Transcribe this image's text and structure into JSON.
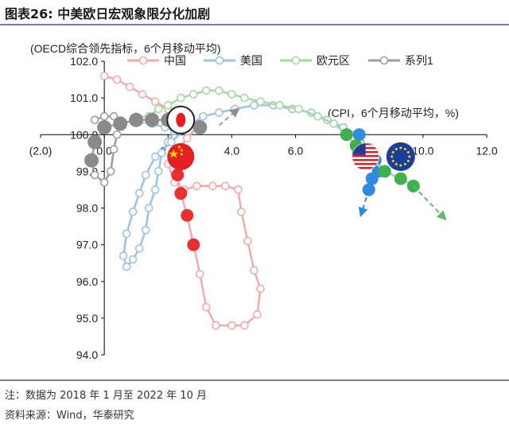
{
  "figure": {
    "title": "图表26:  中美欧日宏观象限分化加剧",
    "note": "注：数据为 2018 年 1 月至 2022 年 10 月",
    "source": "资料来源：Wind，华泰研究"
  },
  "chart_data": {
    "type": "scatter",
    "ylabel": "(OECD综合领先指标，6个月移动平均)",
    "xlabel": "(CPI，6个月移动平均，%)",
    "xlim": [
      -2.0,
      12.0
    ],
    "ylim": [
      94.0,
      102.0
    ],
    "x_ticks": [
      "(2.0)",
      "0.0",
      "2.0",
      "4.0",
      "6.0",
      "8.0",
      "10.0",
      "12.0"
    ],
    "y_ticks": [
      "94.0",
      "95.0",
      "96.0",
      "97.0",
      "98.0",
      "99.0",
      "100.0",
      "101.0",
      "102.0"
    ],
    "x_tick_values": [
      -2,
      0,
      2,
      4,
      6,
      8,
      10,
      12
    ],
    "y_tick_values": [
      94,
      95,
      96,
      97,
      98,
      99,
      100,
      101,
      102
    ],
    "x_axis_crosses_y": 100.0,
    "legend_position": "top",
    "series": [
      {
        "name": "中国",
        "color": "#f4aaaa",
        "icon": "china-flag-icon",
        "points": [
          [
            0.0,
            101.6
          ],
          [
            0.4,
            101.5
          ],
          [
            0.8,
            101.3
          ],
          [
            1.2,
            101.1
          ],
          [
            1.6,
            100.9
          ],
          [
            2.0,
            100.7
          ],
          [
            2.3,
            100.5
          ],
          [
            2.6,
            100.3
          ],
          [
            2.9,
            100.2
          ],
          [
            2.6,
            99.9
          ],
          [
            2.3,
            99.6
          ],
          [
            2.0,
            99.2
          ],
          [
            2.2,
            98.7
          ],
          [
            2.5,
            98.5
          ],
          [
            2.9,
            98.6
          ],
          [
            3.4,
            98.6
          ],
          [
            3.8,
            98.6
          ],
          [
            4.2,
            98.5
          ],
          [
            4.3,
            97.9
          ],
          [
            4.5,
            97.1
          ],
          [
            4.7,
            96.3
          ],
          [
            4.9,
            95.8
          ],
          [
            4.8,
            95.1
          ],
          [
            4.4,
            94.8
          ],
          [
            4.0,
            94.8
          ],
          [
            3.5,
            94.8
          ],
          [
            3.2,
            95.3
          ],
          [
            3.0,
            96.2
          ],
          [
            2.8,
            97.0
          ],
          [
            2.6,
            97.8
          ],
          [
            2.4,
            98.4
          ],
          [
            2.3,
            98.9
          ],
          [
            2.4,
            99.2
          ],
          [
            2.4,
            99.5
          ]
        ]
      },
      {
        "name": "美国",
        "color": "#9cc3e6",
        "icon": "usa-flag-icon",
        "points": [
          [
            1.5,
            100.3
          ],
          [
            1.9,
            100.2
          ],
          [
            2.2,
            100.1
          ],
          [
            2.0,
            99.8
          ],
          [
            1.8,
            99.5
          ],
          [
            1.7,
            99.0
          ],
          [
            1.6,
            98.5
          ],
          [
            1.4,
            98.0
          ],
          [
            1.3,
            97.4
          ],
          [
            1.1,
            96.9
          ],
          [
            0.9,
            96.6
          ],
          [
            0.7,
            96.4
          ],
          [
            0.6,
            96.7
          ],
          [
            0.7,
            97.3
          ],
          [
            0.9,
            97.9
          ],
          [
            1.1,
            98.4
          ],
          [
            1.3,
            98.9
          ],
          [
            1.6,
            99.4
          ],
          [
            2.1,
            99.8
          ],
          [
            2.6,
            100.2
          ],
          [
            3.1,
            100.5
          ],
          [
            3.6,
            100.6
          ],
          [
            4.1,
            100.7
          ],
          [
            4.7,
            100.8
          ],
          [
            5.3,
            100.8
          ],
          [
            5.9,
            100.7
          ],
          [
            6.5,
            100.6
          ],
          [
            7.0,
            100.4
          ],
          [
            7.5,
            100.2
          ],
          [
            8.0,
            100.0
          ],
          [
            8.3,
            99.6
          ],
          [
            8.5,
            99.3
          ],
          [
            8.6,
            99.0
          ],
          [
            8.4,
            98.8
          ],
          [
            8.3,
            98.5
          ]
        ]
      },
      {
        "name": "欧元区",
        "color": "#a6d8a0",
        "icon": "eu-flag-icon",
        "points": [
          [
            1.2,
            100.4
          ],
          [
            1.4,
            100.5
          ],
          [
            1.7,
            100.7
          ],
          [
            2.0,
            100.8
          ],
          [
            2.4,
            101.0
          ],
          [
            2.8,
            101.1
          ],
          [
            3.2,
            101.2
          ],
          [
            3.6,
            101.2
          ],
          [
            4.0,
            101.1
          ],
          [
            4.4,
            101.0
          ],
          [
            4.9,
            100.9
          ],
          [
            5.5,
            100.8
          ],
          [
            6.1,
            100.7
          ],
          [
            6.7,
            100.5
          ],
          [
            7.2,
            100.3
          ],
          [
            7.6,
            100.0
          ],
          [
            7.9,
            99.7
          ],
          [
            8.3,
            99.4
          ],
          [
            8.8,
            99.0
          ],
          [
            9.3,
            98.8
          ],
          [
            9.7,
            98.6
          ]
        ]
      },
      {
        "name": "系列1",
        "color": "#9e9e9e",
        "icon": "japan-flag-icon",
        "points": [
          [
            -0.3,
            100.4
          ],
          [
            0.0,
            100.5
          ],
          [
            0.3,
            100.5
          ],
          [
            0.5,
            100.3
          ],
          [
            0.4,
            100.0
          ],
          [
            0.3,
            99.6
          ],
          [
            0.2,
            99.0
          ],
          [
            0.0,
            98.7
          ],
          [
            -0.3,
            98.9
          ],
          [
            -0.4,
            99.3
          ],
          [
            -0.3,
            99.8
          ],
          [
            0.0,
            100.2
          ],
          [
            0.5,
            100.3
          ],
          [
            1.0,
            100.4
          ],
          [
            1.5,
            100.4
          ],
          [
            2.0,
            100.4
          ],
          [
            2.5,
            100.3
          ],
          [
            3.0,
            100.2
          ]
        ]
      }
    ],
    "flags": [
      {
        "icon": "china-flag-icon",
        "x": 2.4,
        "y": 99.4
      },
      {
        "icon": "usa-flag-icon",
        "x": 8.2,
        "y": 99.4
      },
      {
        "icon": "eu-flag-icon",
        "x": 9.3,
        "y": 99.4
      },
      {
        "icon": "japan-flag-icon",
        "x": 2.4,
        "y": 100.4
      }
    ]
  }
}
